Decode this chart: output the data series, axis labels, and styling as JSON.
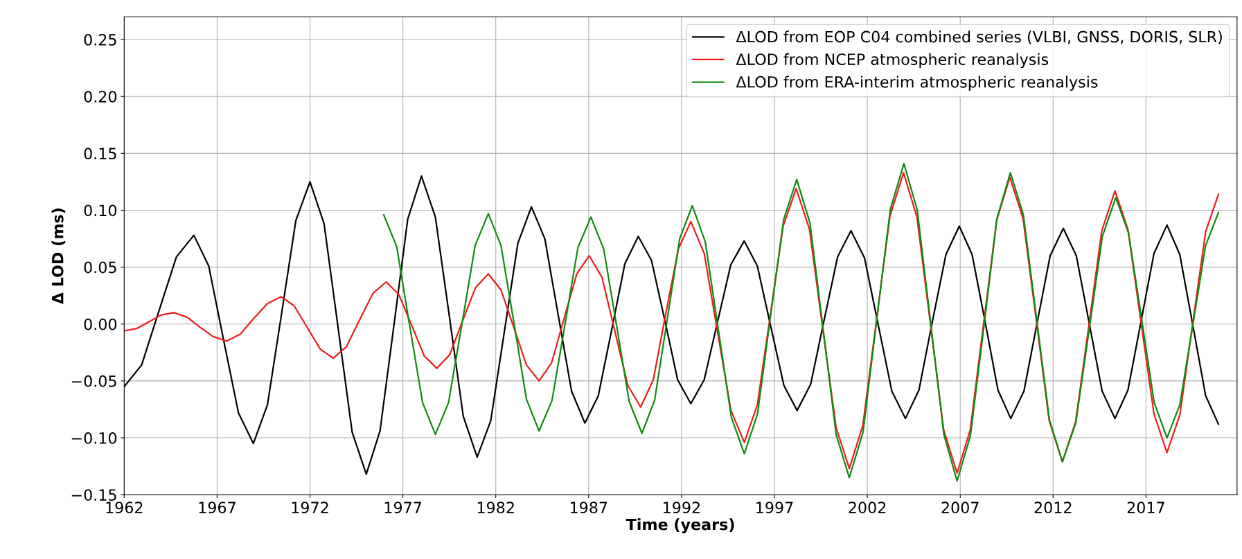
{
  "chart_data": {
    "type": "line",
    "xlabel": "Time (years)",
    "ylabel": "Δ LOD (ms)",
    "xlim": [
      1962,
      2021.9
    ],
    "xticks": [
      1962,
      1967,
      1972,
      1977,
      1982,
      1987,
      1992,
      1997,
      2002,
      2007,
      2012,
      2017
    ],
    "ylim": [
      -0.15,
      0.27
    ],
    "yticks": [
      {
        "value": -0.15,
        "label": "−0.15"
      },
      {
        "value": -0.1,
        "label": "−0.10"
      },
      {
        "value": -0.05,
        "label": "−0.05"
      },
      {
        "value": 0,
        "label": "0.00"
      },
      {
        "value": 0.05,
        "label": "0.05"
      },
      {
        "value": 0.1,
        "label": "0.10"
      },
      {
        "value": 0.15,
        "label": "0.15"
      },
      {
        "value": 0.2,
        "label": "0.20"
      },
      {
        "value": 0.25,
        "label": "0.25"
      }
    ],
    "grid": true,
    "legend": "top right",
    "marker": "none",
    "line_style": "solid",
    "series": [
      {
        "name": "ΔLOD from EOP C04 combined series (VLBI, GNSS, DORIS, SLR)",
        "color": "#000000",
        "x": [
          1962,
          1962.94,
          1963.88,
          1964.81,
          1965.75,
          1966.55,
          1967.35,
          1968.15,
          1968.95,
          1969.71,
          1970.48,
          1971.24,
          1972.0,
          1972.76,
          1973.52,
          1974.27,
          1975.03,
          1975.77,
          1976.52,
          1977.26,
          1978.0,
          1978.75,
          1979.5,
          1980.25,
          1981.0,
          1981.73,
          1982.46,
          1983.19,
          1983.92,
          1984.64,
          1985.36,
          1986.08,
          1986.8,
          1987.52,
          1988.24,
          1988.95,
          1989.67,
          1990.38,
          1991.09,
          1991.79,
          1992.5,
          1993.22,
          1993.94,
          1994.65,
          1995.37,
          1996.08,
          1996.8,
          1997.51,
          1998.22,
          1998.95,
          1999.67,
          2000.4,
          2001.12,
          2001.85,
          2002.59,
          2003.32,
          2004.05,
          2004.78,
          2005.5,
          2006.23,
          2006.95,
          2007.64,
          2008.34,
          2009.03,
          2009.72,
          2010.43,
          2011.14,
          2011.84,
          2012.55,
          2013.25,
          2013.94,
          2014.64,
          2015.33,
          2016.03,
          2016.73,
          2017.43,
          2018.13,
          2018.82,
          2019.52,
          2020.21,
          2020.9
        ],
        "values": [
          -0.055,
          -0.036,
          0.012,
          0.059,
          0.078,
          0.051,
          -0.014,
          -0.078,
          -0.105,
          -0.071,
          0.01,
          0.091,
          0.125,
          0.088,
          -0.004,
          -0.095,
          -0.132,
          -0.094,
          -0.001,
          0.092,
          0.13,
          0.094,
          0.007,
          -0.081,
          -0.117,
          -0.085,
          -0.007,
          0.071,
          0.103,
          0.075,
          0.008,
          -0.059,
          -0.087,
          -0.063,
          -0.005,
          0.053,
          0.077,
          0.056,
          0.004,
          -0.049,
          -0.07,
          -0.049,
          0.002,
          0.052,
          0.073,
          0.051,
          -0.002,
          -0.054,
          -0.076,
          -0.053,
          0.003,
          0.059,
          0.082,
          0.058,
          -0.001,
          -0.059,
          -0.083,
          -0.058,
          0.002,
          0.061,
          0.086,
          0.061,
          0.002,
          -0.058,
          -0.083,
          -0.059,
          0.001,
          0.06,
          0.084,
          0.06,
          0.001,
          -0.059,
          -0.083,
          -0.058,
          0.002,
          0.062,
          0.087,
          0.061,
          -0.001,
          -0.063,
          -0.088
        ]
      },
      {
        "name": "ΔLOD from NCEP atmospheric reanalysis",
        "color": "#ee1c1c",
        "x": [
          1962,
          1962.67,
          1963.34,
          1964.0,
          1964.67,
          1965.38,
          1966.09,
          1966.79,
          1967.5,
          1968.24,
          1968.98,
          1969.71,
          1970.45,
          1971.15,
          1971.85,
          1972.55,
          1973.25,
          1973.96,
          1974.68,
          1975.39,
          1976.1,
          1976.78,
          1977.47,
          1978.15,
          1978.83,
          1979.52,
          1980.22,
          1980.91,
          1981.6,
          1982.28,
          1982.97,
          1983.65,
          1984.33,
          1985.01,
          1985.68,
          1986.36,
          1987.03,
          1987.72,
          1988.42,
          1989.11,
          1989.8,
          1990.48,
          1991.15,
          1991.83,
          1992.5,
          1993.22,
          1993.94,
          1994.66,
          1995.38,
          1996.08,
          1996.78,
          1997.47,
          1998.17,
          1998.89,
          1999.6,
          2000.32,
          2001.03,
          2001.76,
          2002.49,
          2003.22,
          2003.95,
          2004.67,
          2005.39,
          2006.11,
          2006.83,
          2007.54,
          2008.25,
          2008.96,
          2009.67,
          2010.38,
          2011.09,
          2011.79,
          2012.5,
          2013.21,
          2013.92,
          2014.62,
          2015.33,
          2016.03,
          2016.73,
          2017.43,
          2018.13,
          2018.82,
          2019.52,
          2020.21,
          2020.9
        ],
        "values": [
          -0.006,
          -0.004,
          0.002,
          0.008,
          0.01,
          0.006,
          -0.003,
          -0.011,
          -0.015,
          -0.009,
          0.005,
          0.018,
          0.024,
          0.016,
          -0.003,
          -0.022,
          -0.03,
          -0.02,
          0.004,
          0.027,
          0.037,
          0.026,
          -0.001,
          -0.028,
          -0.039,
          -0.027,
          0.003,
          0.032,
          0.044,
          0.03,
          -0.003,
          -0.036,
          -0.05,
          -0.034,
          0.005,
          0.044,
          0.06,
          0.041,
          -0.007,
          -0.054,
          -0.073,
          -0.049,
          0.009,
          0.066,
          0.09,
          0.062,
          -0.007,
          -0.076,
          -0.104,
          -0.071,
          0.008,
          0.086,
          0.119,
          0.083,
          -0.004,
          -0.091,
          -0.127,
          -0.089,
          0.003,
          0.095,
          0.133,
          0.094,
          0.001,
          -0.093,
          -0.131,
          -0.093,
          -0.001,
          0.091,
          0.129,
          0.093,
          0.004,
          -0.085,
          -0.121,
          -0.086,
          -0.002,
          0.082,
          0.117,
          0.083,
          0.002,
          -0.079,
          -0.113,
          -0.08,
          0.001,
          0.081,
          0.114
        ]
      },
      {
        "name": "ΔLOD from ERA-interim atmospheric reanalysis",
        "color": "#128a12",
        "x": [
          1975.97,
          1976.67,
          1977.36,
          1978.06,
          1978.75,
          1979.46,
          1980.18,
          1980.89,
          1981.6,
          1982.28,
          1982.97,
          1983.65,
          1984.33,
          1985.03,
          1985.73,
          1986.42,
          1987.12,
          1987.81,
          1988.5,
          1989.18,
          1989.87,
          1990.55,
          1991.23,
          1991.9,
          1992.58,
          1993.28,
          1993.98,
          1994.68,
          1995.38,
          1996.09,
          1996.79,
          1997.5,
          1998.2,
          1998.91,
          1999.62,
          2000.32,
          2001.03,
          2001.77,
          2002.5,
          2003.24,
          2003.97,
          2004.69,
          2005.4,
          2006.12,
          2006.83,
          2007.55,
          2008.27,
          2008.98,
          2009.7,
          2010.4,
          2011.1,
          2011.8,
          2012.5,
          2013.22,
          2013.94,
          2014.65,
          2015.37,
          2016.06,
          2016.75,
          2017.44,
          2018.13,
          2018.82,
          2019.52,
          2020.21,
          2020.9
        ],
        "values": [
          0.096,
          0.068,
          -0.001,
          -0.069,
          -0.097,
          -0.069,
          0.0,
          0.069,
          0.097,
          0.069,
          0.002,
          -0.066,
          -0.094,
          -0.067,
          0.0,
          0.067,
          0.094,
          0.066,
          -0.001,
          -0.068,
          -0.096,
          -0.067,
          0.004,
          0.075,
          0.104,
          0.072,
          -0.005,
          -0.082,
          -0.114,
          -0.079,
          0.007,
          0.092,
          0.127,
          0.089,
          -0.004,
          -0.097,
          -0.135,
          -0.095,
          0.003,
          0.101,
          0.141,
          0.1,
          0.002,
          -0.097,
          -0.138,
          -0.098,
          -0.003,
          0.093,
          0.133,
          0.096,
          0.006,
          -0.084,
          -0.121,
          -0.087,
          -0.005,
          0.077,
          0.111,
          0.08,
          0.006,
          -0.069,
          -0.1,
          -0.071,
          -0.001,
          0.069,
          0.098
        ]
      }
    ]
  }
}
